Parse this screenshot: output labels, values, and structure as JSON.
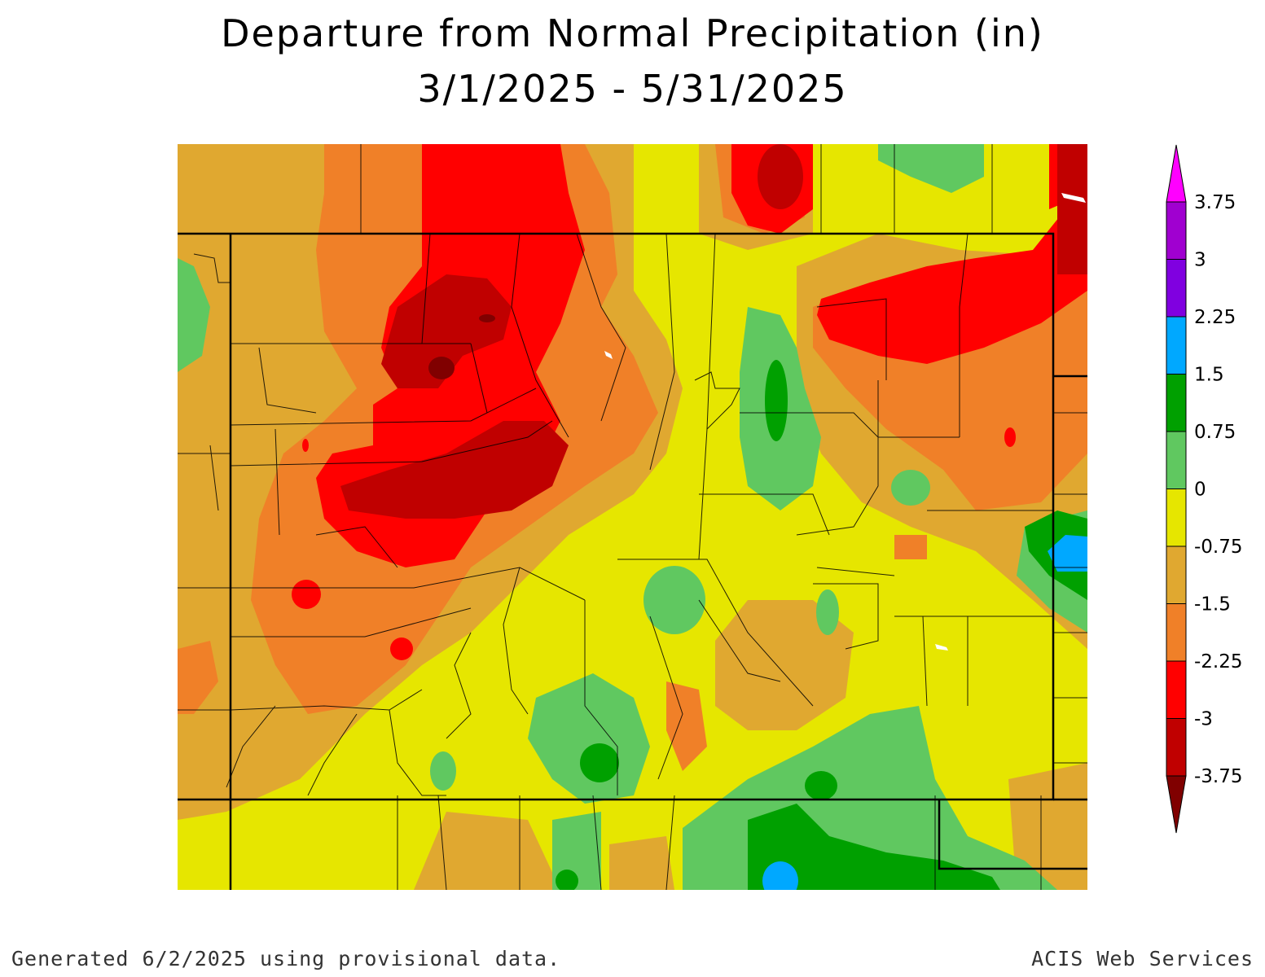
{
  "title": "Departure from Normal Precipitation (in)",
  "date_range": "3/1/2025 - 5/31/2025",
  "footer_left": "Generated 6/2/2025 using provisional data.",
  "footer_right": "ACIS Web Services",
  "legend": {
    "bins": [
      {
        "label": "3.75",
        "color": "#ff00ff"
      },
      {
        "label": "3",
        "color": "#a000d0"
      },
      {
        "label": "2.25",
        "color": "#8000e0"
      },
      {
        "label": "1.5",
        "color": "#00a8ff"
      },
      {
        "label": "0.75",
        "color": "#00a000"
      },
      {
        "label": "0",
        "color": "#60c860"
      },
      {
        "label": "-0.75",
        "color": "#e6e600"
      },
      {
        "label": "-1.5",
        "color": "#e0a830"
      },
      {
        "label": "-2.25",
        "color": "#f08028"
      },
      {
        "label": "-3",
        "color": "#ff0000"
      },
      {
        "label": "-3.75",
        "color": "#c00000"
      }
    ],
    "bottom_color": "#800000"
  },
  "colors": {
    "dark_red": "#a00000",
    "red": "#ff0000",
    "orange": "#f08028",
    "tan": "#e0a830",
    "yellow": "#e6e600",
    "light_green": "#60c860",
    "green": "#00a000",
    "blue": "#00a8ff"
  }
}
